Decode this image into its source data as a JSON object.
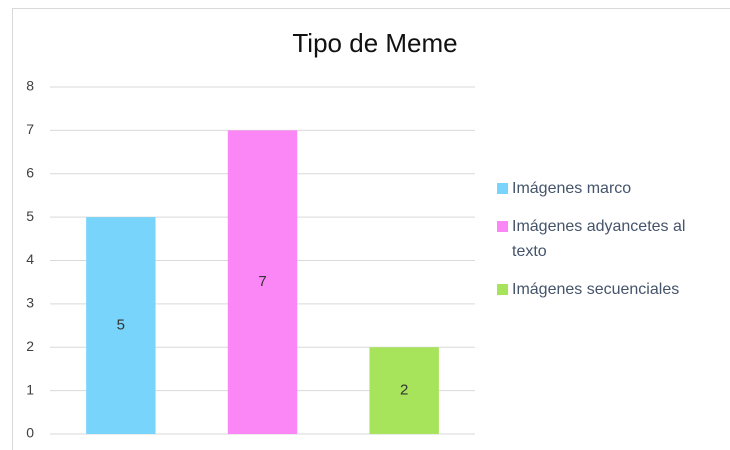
{
  "chart_data": {
    "type": "bar",
    "title": "Tipo de Meme",
    "categories": [
      "Imágenes marco",
      "Imágenes adyancetes al texto",
      "Imágenes secuenciales"
    ],
    "values": [
      5,
      7,
      2
    ],
    "colors": [
      "#78d4fb",
      "#fb86f5",
      "#a7e35b"
    ],
    "ylim": [
      0,
      8
    ],
    "yticks": [
      0,
      1,
      2,
      3,
      4,
      5,
      6,
      7,
      8
    ],
    "grid": true,
    "legend": "right"
  }
}
